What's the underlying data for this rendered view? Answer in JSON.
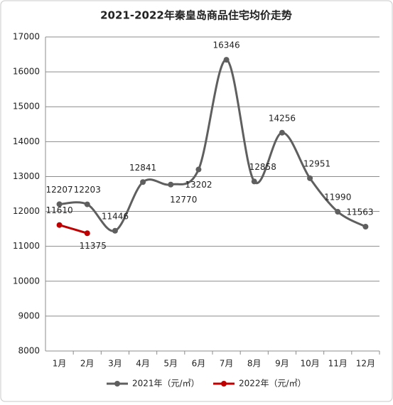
{
  "chart_data": {
    "type": "line",
    "title": "2021-2022年秦皇岛商品住宅均价走势",
    "categories": [
      "1月",
      "2月",
      "3月",
      "4月",
      "5月",
      "6月",
      "7月",
      "8月",
      "9月",
      "10月",
      "11月",
      "12月"
    ],
    "series": [
      {
        "name": "2021年（元/㎡）",
        "color": "#5f5f5f",
        "values": [
          12207,
          12203,
          11446,
          12841,
          12770,
          13202,
          16346,
          12858,
          14256,
          12951,
          11990,
          11563
        ]
      },
      {
        "name": "2022年（元/㎡）",
        "color": "#c00000",
        "values": [
          11610,
          11375,
          null,
          null,
          null,
          null,
          null,
          null,
          null,
          null,
          null,
          null
        ]
      }
    ],
    "ylim": [
      8000,
      17000
    ],
    "yticks": [
      8000,
      9000,
      10000,
      11000,
      12000,
      13000,
      14000,
      15000,
      16000,
      17000
    ],
    "grid": true
  }
}
